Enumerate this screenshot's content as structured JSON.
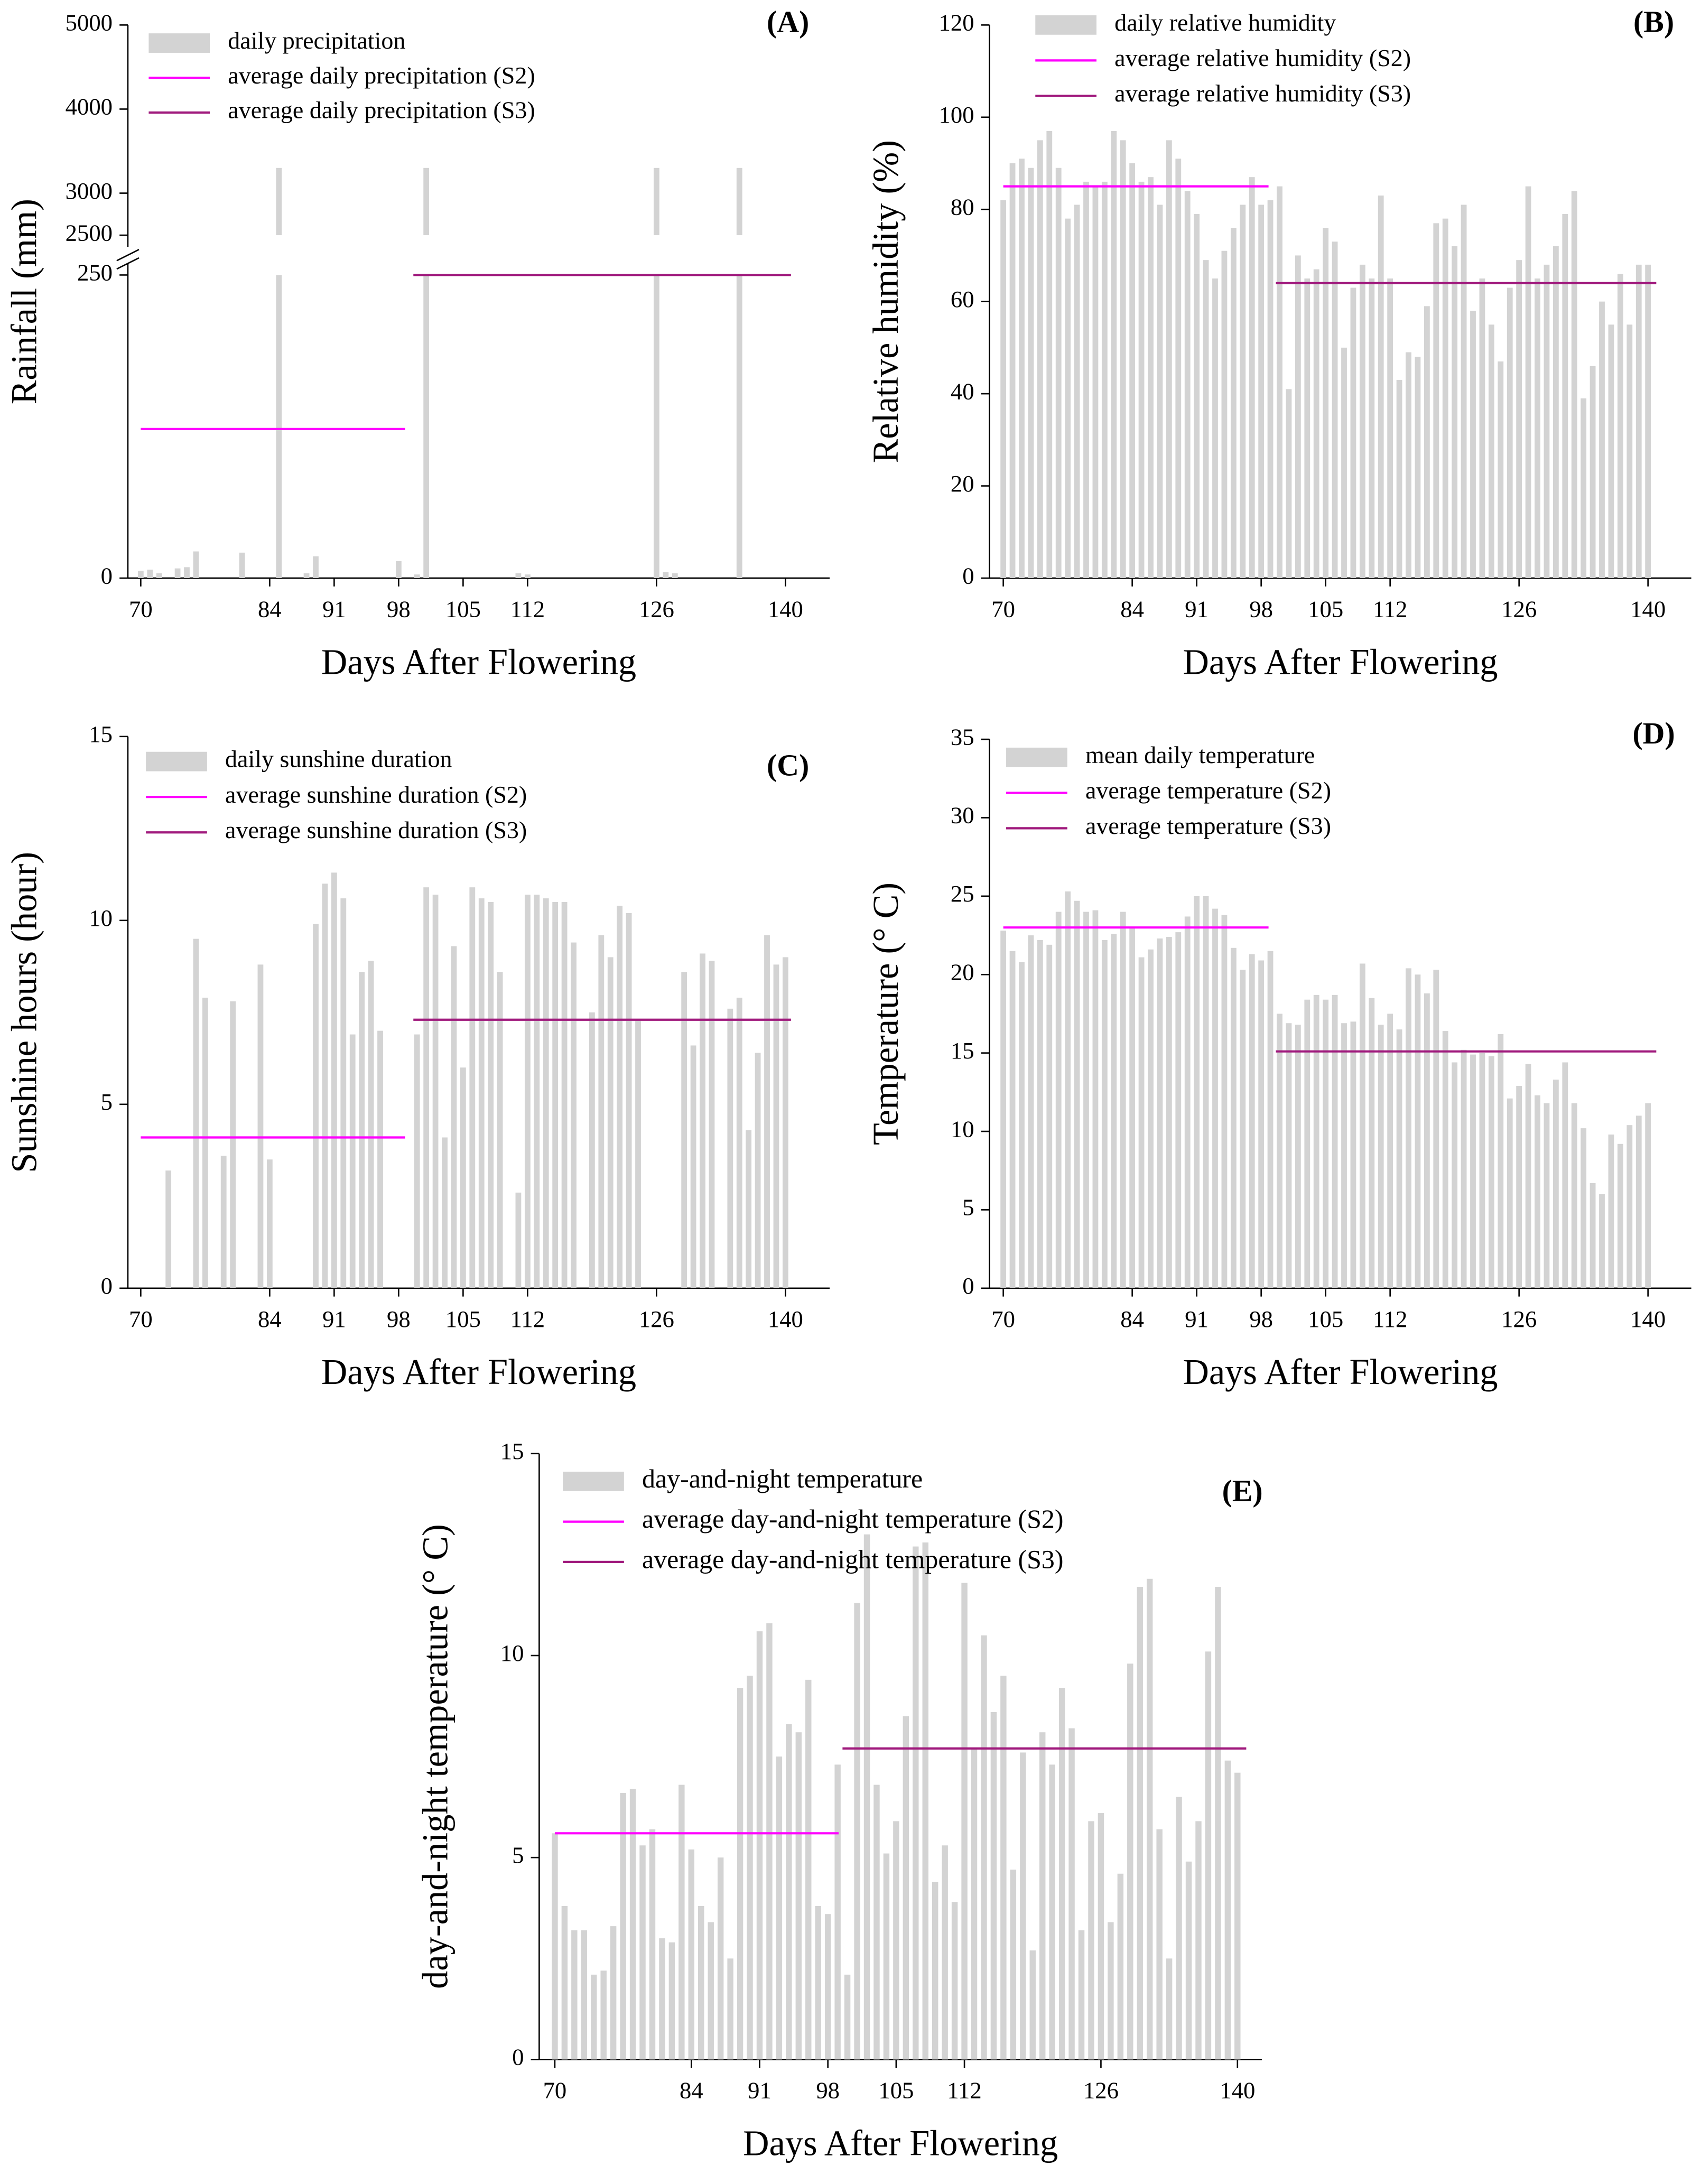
{
  "chart_data": [
    {
      "type": "bar",
      "panel": "(A)",
      "xlabel": "Days After Flowering",
      "ylabel": "Rainfall (mm)",
      "xlim": [
        68.6,
        144.8
      ],
      "xticks": [
        70,
        84,
        91,
        98,
        105,
        112,
        126,
        140
      ],
      "ylim": [
        0,
        5000
      ],
      "ybreak": [
        250,
        2500
      ],
      "yticks": [
        0,
        250,
        2500,
        3000,
        4000,
        5000
      ],
      "legend": "upper left",
      "x": [
        70,
        71,
        72,
        73,
        74,
        75,
        76,
        77,
        78,
        79,
        80,
        81,
        82,
        83,
        84,
        85,
        86,
        87,
        88,
        89,
        90,
        91,
        92,
        93,
        94,
        95,
        96,
        97,
        98,
        99,
        100,
        101,
        102,
        103,
        104,
        105,
        106,
        107,
        108,
        109,
        110,
        111,
        112,
        113,
        114,
        115,
        116,
        117,
        118,
        119,
        120,
        121,
        122,
        123,
        124,
        125,
        126,
        127,
        128,
        129,
        130,
        131,
        132,
        133,
        134,
        135,
        136,
        137,
        138,
        139,
        140
      ],
      "series": [
        {
          "name": "daily precipitation",
          "color": "#d3d3d3",
          "values": [
            6,
            7,
            4,
            0,
            8,
            9,
            22,
            0,
            0,
            0,
            0,
            21,
            0,
            0,
            0,
            3300,
            0,
            0,
            4,
            18,
            0,
            0,
            0,
            0,
            0,
            0,
            0,
            0,
            14,
            0,
            3,
            3300,
            0,
            0,
            0,
            0,
            0,
            0,
            0,
            0,
            0,
            4,
            3,
            0,
            0,
            0,
            0,
            0,
            0,
            0,
            0,
            0,
            0,
            0,
            0,
            0,
            3300,
            5,
            4,
            0,
            0,
            0,
            0,
            0,
            0,
            3300,
            0,
            0,
            0,
            0,
            0
          ]
        },
        {
          "name": "average daily precipitation (S2)",
          "color": "#ff00ff",
          "type": "line",
          "x": [
            70,
            98.7
          ],
          "values": [
            123,
            123
          ]
        },
        {
          "name": "average daily precipitation (S3)",
          "color": "#a01a7d",
          "type": "line",
          "x": [
            99.6,
            140.6
          ],
          "values": [
            252,
            252
          ]
        }
      ]
    },
    {
      "type": "bar",
      "panel": "(B)",
      "xlabel": "Days After Flowering",
      "ylabel": "Relative humidity (%)",
      "xlim": [
        68.5,
        144.7
      ],
      "xticks": [
        70,
        84,
        91,
        98,
        105,
        112,
        126,
        140
      ],
      "ylim": [
        0,
        120
      ],
      "yticks": [
        0,
        20,
        40,
        60,
        80,
        100,
        120
      ],
      "legend": "upper left",
      "x": [
        70,
        71,
        72,
        73,
        74,
        75,
        76,
        77,
        78,
        79,
        80,
        81,
        82,
        83,
        84,
        85,
        86,
        87,
        88,
        89,
        90,
        91,
        92,
        93,
        94,
        95,
        96,
        97,
        98,
        99,
        100,
        101,
        102,
        103,
        104,
        105,
        106,
        107,
        108,
        109,
        110,
        111,
        112,
        113,
        114,
        115,
        116,
        117,
        118,
        119,
        120,
        121,
        122,
        123,
        124,
        125,
        126,
        127,
        128,
        129,
        130,
        131,
        132,
        133,
        134,
        135,
        136,
        137,
        138,
        139,
        140
      ],
      "series": [
        {
          "name": "daily relative humidity",
          "color": "#d3d3d3",
          "values": [
            82,
            90,
            91,
            89,
            95,
            97,
            89,
            78,
            81,
            86,
            85,
            86,
            97,
            95,
            90,
            86,
            87,
            81,
            95,
            91,
            84,
            79,
            69,
            65,
            71,
            76,
            81,
            87,
            81,
            82,
            85,
            41,
            70,
            65,
            67,
            76,
            73,
            50,
            63,
            68,
            65,
            83,
            65,
            43,
            49,
            48,
            59,
            77,
            78,
            72,
            81,
            58,
            65,
            55,
            47,
            63,
            69,
            85,
            65,
            68,
            72,
            79,
            84,
            39,
            46,
            60,
            55,
            66,
            55,
            68,
            68
          ]
        },
        {
          "name": "average relative humidity (S2)",
          "color": "#ff00ff",
          "type": "line",
          "x": [
            70,
            98.8
          ],
          "values": [
            85,
            85
          ]
        },
        {
          "name": "average relative humidity (S3)",
          "color": "#a01a7d",
          "type": "line",
          "x": [
            99.6,
            140.9
          ],
          "values": [
            64,
            64
          ]
        }
      ]
    },
    {
      "type": "bar",
      "panel": "(C)",
      "xlabel": "Days After Flowering",
      "ylabel": "Sunshine hours (hour)",
      "xlim": [
        68.6,
        144.8
      ],
      "xticks": [
        70,
        84,
        91,
        98,
        105,
        112,
        126,
        140
      ],
      "ylim": [
        0,
        15
      ],
      "yticks": [
        0,
        5,
        10,
        15
      ],
      "legend": "upper left",
      "x": [
        70,
        71,
        72,
        73,
        74,
        75,
        76,
        77,
        78,
        79,
        80,
        81,
        82,
        83,
        84,
        85,
        86,
        87,
        88,
        89,
        90,
        91,
        92,
        93,
        94,
        95,
        96,
        97,
        98,
        99,
        100,
        101,
        102,
        103,
        104,
        105,
        106,
        107,
        108,
        109,
        110,
        111,
        112,
        113,
        114,
        115,
        116,
        117,
        118,
        119,
        120,
        121,
        122,
        123,
        124,
        125,
        126,
        127,
        128,
        129,
        130,
        131,
        132,
        133,
        134,
        135,
        136,
        137,
        138,
        139,
        140
      ],
      "series": [
        {
          "name": "daily sunshine duration",
          "color": "#d3d3d3",
          "values": [
            0,
            0,
            0,
            3.2,
            0,
            0,
            9.5,
            7.9,
            0,
            3.6,
            7.8,
            0,
            0,
            8.8,
            3.5,
            0,
            0,
            0,
            0,
            9.9,
            11.0,
            11.3,
            10.6,
            6.9,
            8.6,
            8.9,
            7.0,
            0,
            0,
            0,
            6.9,
            10.9,
            10.7,
            4.1,
            9.3,
            6.0,
            10.9,
            10.6,
            10.5,
            8.6,
            0,
            2.6,
            10.7,
            10.7,
            10.6,
            10.5,
            10.5,
            9.4,
            0,
            7.5,
            9.6,
            9.0,
            10.4,
            10.2,
            7.3,
            0,
            0,
            0,
            0,
            8.6,
            6.6,
            9.1,
            8.9,
            0,
            7.6,
            7.9,
            4.3,
            6.4,
            9.6,
            8.8,
            9.0
          ]
        },
        {
          "name": "average sunshine duration (S2)",
          "color": "#ff00ff",
          "type": "line",
          "x": [
            70,
            98.7
          ],
          "values": [
            4.1,
            4.1
          ]
        },
        {
          "name": "average sunshine duration (S3)",
          "color": "#a01a7d",
          "type": "line",
          "x": [
            99.6,
            140.6
          ],
          "values": [
            7.3,
            7.3
          ]
        }
      ]
    },
    {
      "type": "bar",
      "panel": "(D)",
      "xlabel": "Days After Flowering",
      "ylabel": "Temperature (° C)",
      "xlim": [
        68.5,
        144.7
      ],
      "xticks": [
        70,
        84,
        91,
        98,
        105,
        112,
        126,
        140
      ],
      "ylim": [
        0,
        35
      ],
      "yticks": [
        0,
        5,
        10,
        15,
        20,
        25,
        30,
        35
      ],
      "legend": "upper left",
      "x": [
        70,
        71,
        72,
        73,
        74,
        75,
        76,
        77,
        78,
        79,
        80,
        81,
        82,
        83,
        84,
        85,
        86,
        87,
        88,
        89,
        90,
        91,
        92,
        93,
        94,
        95,
        96,
        97,
        98,
        99,
        100,
        101,
        102,
        103,
        104,
        105,
        106,
        107,
        108,
        109,
        110,
        111,
        112,
        113,
        114,
        115,
        116,
        117,
        118,
        119,
        120,
        121,
        122,
        123,
        124,
        125,
        126,
        127,
        128,
        129,
        130,
        131,
        132,
        133,
        134,
        135,
        136,
        137,
        138,
        139,
        140
      ],
      "series": [
        {
          "name": "mean daily temperature",
          "color": "#d3d3d3",
          "values": [
            22.8,
            21.5,
            20.8,
            22.5,
            22.2,
            21.9,
            24.0,
            25.3,
            24.7,
            24.0,
            24.1,
            22.2,
            22.6,
            24.0,
            23.0,
            21.1,
            21.6,
            22.3,
            22.4,
            22.7,
            23.7,
            25.0,
            25.0,
            24.2,
            23.8,
            21.7,
            20.3,
            21.3,
            20.9,
            21.5,
            17.5,
            16.9,
            16.8,
            18.4,
            18.7,
            18.4,
            18.7,
            16.9,
            17.0,
            20.7,
            18.5,
            16.8,
            17.5,
            16.5,
            20.4,
            20.0,
            18.8,
            20.3,
            16.4,
            14.4,
            15.2,
            14.9,
            15.0,
            14.8,
            16.2,
            12.1,
            12.9,
            14.3,
            12.3,
            11.8,
            13.3,
            14.4,
            11.8,
            10.2,
            6.7,
            6.0,
            9.8,
            9.2,
            10.4,
            11.0,
            11.8
          ]
        },
        {
          "name": "average temperature (S2)",
          "color": "#ff00ff",
          "type": "line",
          "x": [
            70,
            98.8
          ],
          "values": [
            23.0,
            23.0
          ]
        },
        {
          "name": "average temperature (S3)",
          "color": "#a01a7d",
          "type": "line",
          "x": [
            99.6,
            140.9
          ],
          "values": [
            15.1,
            15.1
          ]
        }
      ]
    },
    {
      "type": "bar",
      "panel": "(E)",
      "xlabel": "Days After Flowering",
      "ylabel": "day-and-night temperature (° C)",
      "xlim": [
        68.4,
        142.5
      ],
      "xticks": [
        70,
        84,
        91,
        98,
        105,
        112,
        126,
        140
      ],
      "ylim": [
        0,
        15
      ],
      "yticks": [
        0,
        5,
        10,
        15
      ],
      "legend": "upper left",
      "x": [
        70,
        71,
        72,
        73,
        74,
        75,
        76,
        77,
        78,
        79,
        80,
        81,
        82,
        83,
        84,
        85,
        86,
        87,
        88,
        89,
        90,
        91,
        92,
        93,
        94,
        95,
        96,
        97,
        98,
        99,
        100,
        101,
        102,
        103,
        104,
        105,
        106,
        107,
        108,
        109,
        110,
        111,
        112,
        113,
        114,
        115,
        116,
        117,
        118,
        119,
        120,
        121,
        122,
        123,
        124,
        125,
        126,
        127,
        128,
        129,
        130,
        131,
        132,
        133,
        134,
        135,
        136,
        137,
        138,
        139,
        140
      ],
      "series": [
        {
          "name": "day-and-night temperature",
          "color": "#d3d3d3",
          "values": [
            5.6,
            3.8,
            3.2,
            3.2,
            2.1,
            2.2,
            3.3,
            6.6,
            6.7,
            5.3,
            5.7,
            3.0,
            2.9,
            6.8,
            5.2,
            3.8,
            3.4,
            5.0,
            2.5,
            9.2,
            9.5,
            10.6,
            10.8,
            7.5,
            8.3,
            8.1,
            9.4,
            3.8,
            3.6,
            7.3,
            2.1,
            11.3,
            13.0,
            6.8,
            5.1,
            5.9,
            8.5,
            12.7,
            12.8,
            4.4,
            5.3,
            3.9,
            11.8,
            7.7,
            10.5,
            8.6,
            9.5,
            4.7,
            7.6,
            2.7,
            8.1,
            7.3,
            9.2,
            8.2,
            3.2,
            5.9,
            6.1,
            3.4,
            4.6,
            9.8,
            11.7,
            11.9,
            5.7,
            2.5,
            6.5,
            4.9,
            5.9,
            10.1,
            11.7,
            7.4,
            7.1
          ]
        },
        {
          "name": "average day-and-night temperature (S2)",
          "color": "#ff00ff",
          "type": "line",
          "x": [
            70,
            99.1
          ],
          "values": [
            5.6,
            5.6
          ]
        },
        {
          "name": "average day-and-night temperature (S3)",
          "color": "#a01a7d",
          "type": "line",
          "x": [
            99.5,
            140.9
          ],
          "values": [
            7.7,
            7.7
          ]
        }
      ]
    }
  ]
}
